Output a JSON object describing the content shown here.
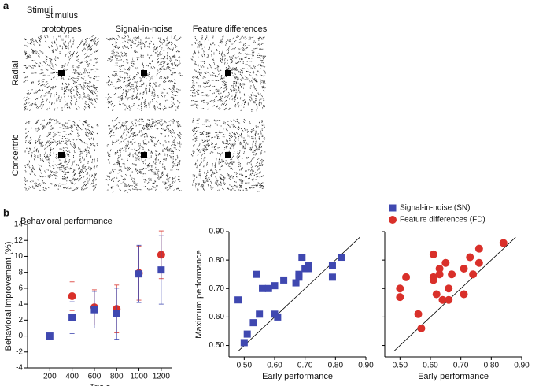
{
  "panel_a": {
    "label": "a",
    "title": "Stimuli",
    "columns": [
      "Stimulus prototypes",
      "Signal-in-noise",
      "Feature differences"
    ],
    "rows": [
      "Radial",
      "Concentric"
    ]
  },
  "panel_b": {
    "label": "b",
    "title": "Behavioral performance"
  },
  "chart_data": [
    {
      "type": "scatter",
      "x_label": "Trials",
      "y_label": "Behavioral improvement (%)",
      "x": [
        200,
        400,
        600,
        800,
        1000,
        1200
      ],
      "series": [
        {
          "name": "Feature differences (FD)",
          "color": "#d9302a",
          "marker": "circle",
          "values": [
            null,
            5.0,
            3.6,
            3.4,
            7.9,
            10.2
          ],
          "errors": [
            null,
            1.8,
            2.2,
            3.0,
            3.4,
            3.0
          ]
        },
        {
          "name": "Signal-in-noise (SN)",
          "color": "#3f48b0",
          "marker": "square",
          "values": [
            0,
            2.3,
            3.3,
            2.8,
            7.8,
            8.3
          ],
          "errors": [
            null,
            2.0,
            2.3,
            3.2,
            3.6,
            4.3
          ]
        }
      ],
      "xlim": [
        0,
        1300
      ],
      "xticks": [
        200,
        400,
        600,
        800,
        1000,
        1200
      ],
      "ylim": [
        -4,
        14
      ],
      "yticks": [
        -4,
        -2,
        0,
        2,
        4,
        6,
        8,
        10,
        12,
        14
      ]
    },
    {
      "type": "scatter",
      "x_label": "Early performance",
      "y_label": "Maximum performance",
      "diagonal": true,
      "series": [
        {
          "color": "#3f48b0",
          "marker": "square",
          "x": [
            0.48,
            0.5,
            0.51,
            0.53,
            0.54,
            0.55,
            0.56,
            0.58,
            0.6,
            0.6,
            0.61,
            0.63,
            0.67,
            0.68,
            0.68,
            0.69,
            0.7,
            0.71,
            0.71,
            0.79,
            0.79,
            0.82
          ],
          "values": [
            0.66,
            0.51,
            0.54,
            0.58,
            0.75,
            0.61,
            0.7,
            0.7,
            0.71,
            0.61,
            0.6,
            0.73,
            0.72,
            0.75,
            0.74,
            0.81,
            0.77,
            0.78,
            0.77,
            0.78,
            0.74,
            0.81
          ]
        }
      ],
      "xlim": [
        0.45,
        0.9
      ],
      "xticks": [
        {
          "value": 0.5,
          "label": "0.50"
        },
        {
          "value": 0.6,
          "label": "0.60"
        },
        {
          "value": 0.7,
          "label": "0.70"
        },
        {
          "value": 0.8,
          "label": "0.80"
        },
        {
          "value": 0.9,
          "label": "0.90"
        }
      ],
      "ylim": [
        0.46,
        0.9
      ],
      "yticks": [
        {
          "value": 0.5,
          "label": "0.50"
        },
        {
          "value": 0.6,
          "label": "0.60"
        },
        {
          "value": 0.7,
          "label": "0.70"
        },
        {
          "value": 0.8,
          "label": "0.80"
        },
        {
          "value": 0.9,
          "label": "0.90"
        }
      ]
    },
    {
      "type": "scatter",
      "x_label": "Early performance",
      "diagonal": true,
      "ytick_labels": false,
      "series": [
        {
          "color": "#d9302a",
          "marker": "circle",
          "x": [
            0.5,
            0.5,
            0.52,
            0.56,
            0.57,
            0.61,
            0.61,
            0.61,
            0.62,
            0.63,
            0.63,
            0.64,
            0.65,
            0.66,
            0.66,
            0.67,
            0.71,
            0.71,
            0.73,
            0.74,
            0.76,
            0.76,
            0.84
          ],
          "values": [
            0.7,
            0.67,
            0.74,
            0.61,
            0.56,
            0.82,
            0.74,
            0.73,
            0.68,
            0.77,
            0.75,
            0.66,
            0.79,
            0.66,
            0.7,
            0.75,
            0.77,
            0.68,
            0.81,
            0.75,
            0.84,
            0.79,
            0.86
          ]
        }
      ],
      "xlim": [
        0.45,
        0.9
      ],
      "xticks": [
        {
          "value": 0.5,
          "label": "0.50"
        },
        {
          "value": 0.6,
          "label": "0.60"
        },
        {
          "value": 0.7,
          "label": "0.70"
        },
        {
          "value": 0.8,
          "label": "0.80"
        },
        {
          "value": 0.9,
          "label": "0.90"
        }
      ],
      "ylim": [
        0.46,
        0.9
      ],
      "yticks": [
        0.5,
        0.6,
        0.7,
        0.8,
        0.9
      ]
    }
  ]
}
